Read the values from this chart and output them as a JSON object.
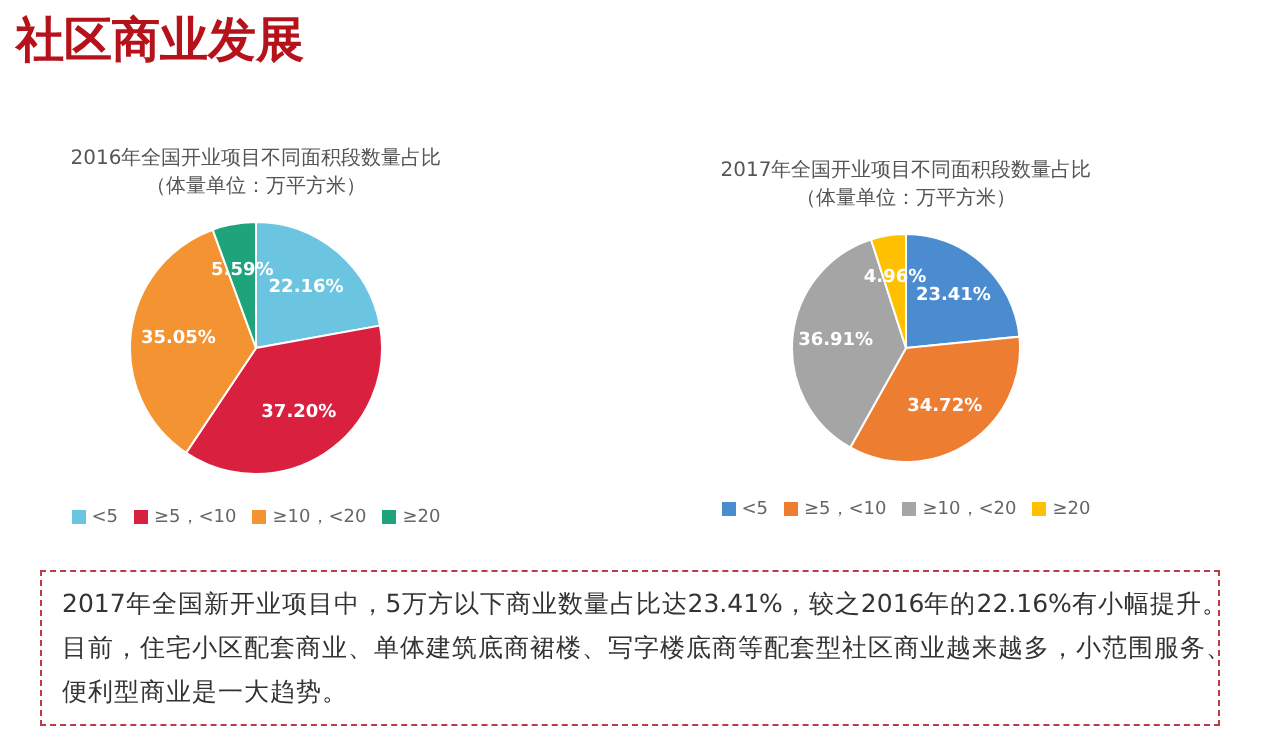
{
  "chart_data": [
    {
      "type": "other",
      "title": "社区商业发展"
    },
    {
      "type": "pie",
      "title": "2016年全国开业项目不同面积段数量占比",
      "subtitle": "（体量单位：万平方米）",
      "categories": [
        "<5",
        "≥5，<10",
        "≥10，<20",
        "≥20"
      ],
      "values": [
        22.16,
        37.2,
        35.05,
        5.59
      ],
      "colors": [
        "#6cc5e0",
        "#d9213f",
        "#f39331",
        "#1fa37a"
      ],
      "value_labels": [
        "22.16%",
        "37.20%",
        "35.05%",
        "5.59%"
      ],
      "legend": "bottom"
    },
    {
      "type": "pie",
      "title": "2017年全国开业项目不同面积段数量占比",
      "subtitle": "（体量单位：万平方米）",
      "categories": [
        "<5",
        "≥5，<10",
        "≥10，<20",
        "≥20"
      ],
      "values": [
        23.41,
        34.72,
        36.91,
        4.96
      ],
      "colors": [
        "#4a8ccf",
        "#ed7d31",
        "#a5a5a5",
        "#ffc000"
      ],
      "value_labels": [
        "23.41%",
        "34.72%",
        "36.91%",
        "4.96%"
      ],
      "legend": "bottom"
    },
    {
      "type": "other",
      "annotations": [
        "2017年全国新开业项目中，5万方以下商业数量占比达23.41%，较之2016年的22.16%有小幅提升。",
        "目前，住宅小区配套商业、单体建筑底商裙楼、写字楼底商等配套型社区商业越来越多，小范围服务、",
        "便利型商业是一大趋势。"
      ]
    }
  ]
}
